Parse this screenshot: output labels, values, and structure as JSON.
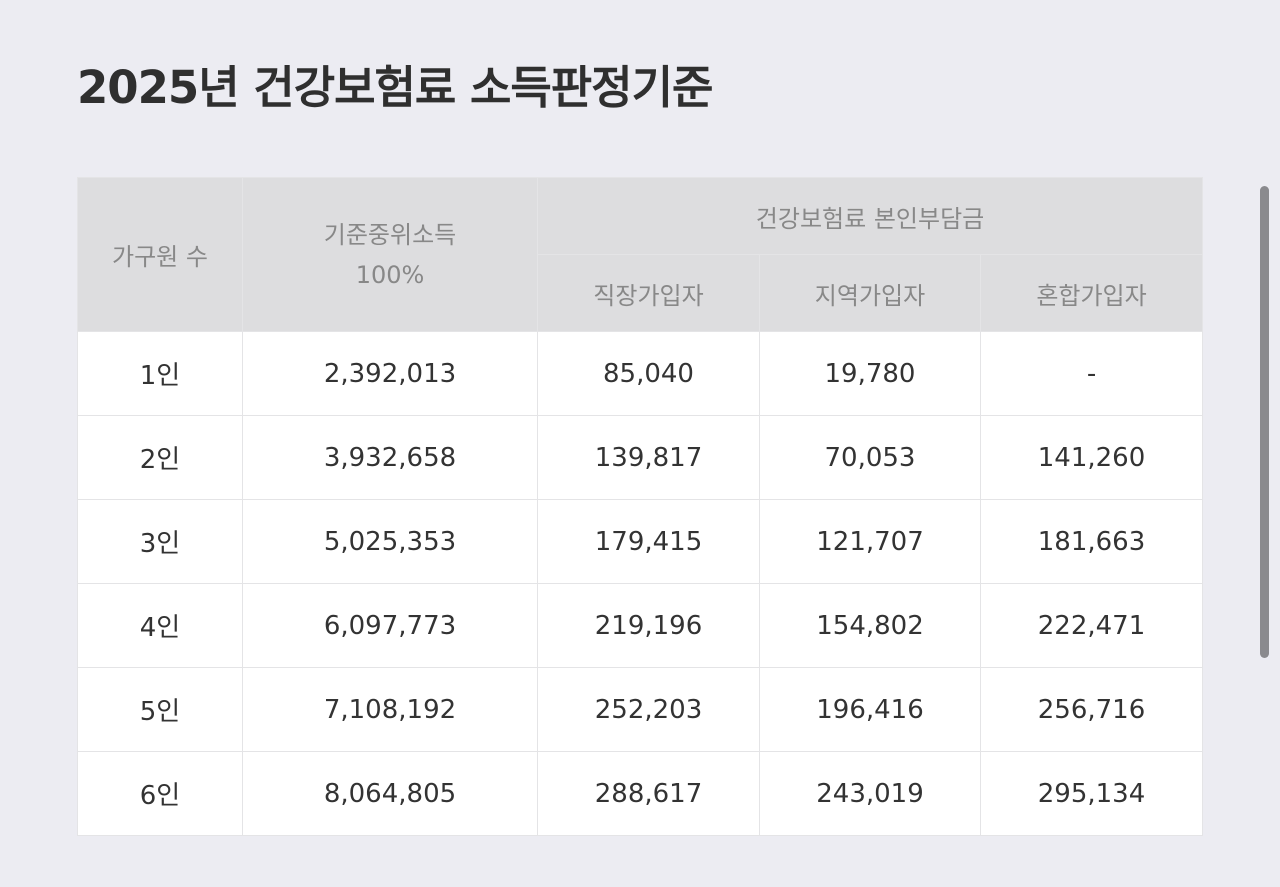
{
  "page": {
    "title": "2025년 건강보험료 소득판정기준"
  },
  "table": {
    "header": {
      "household": "가구원 수",
      "median_income_line1": "기준중위소득",
      "median_income_line2": "100%",
      "premium_group": "건강보험료 본인부담금",
      "employee": "직장가입자",
      "regional": "지역가입자",
      "mixed": "혼합가입자"
    },
    "rows": [
      {
        "household": "1인",
        "median_income": "2,392,013",
        "employee": "85,040",
        "regional": "19,780",
        "mixed": "-"
      },
      {
        "household": "2인",
        "median_income": "3,932,658",
        "employee": "139,817",
        "regional": "70,053",
        "mixed": "141,260"
      },
      {
        "household": "3인",
        "median_income": "5,025,353",
        "employee": "179,415",
        "regional": "121,707",
        "mixed": "181,663"
      },
      {
        "household": "4인",
        "median_income": "6,097,773",
        "employee": "219,196",
        "regional": "154,802",
        "mixed": "222,471"
      },
      {
        "household": "5인",
        "median_income": "7,108,192",
        "employee": "252,203",
        "regional": "196,416",
        "mixed": "256,716"
      },
      {
        "household": "6인",
        "median_income": "8,064,805",
        "employee": "288,617",
        "regional": "243,019",
        "mixed": "295,134"
      }
    ]
  },
  "colors": {
    "background": "#ececf2",
    "header_background": "#dddddf",
    "header_text": "#888888",
    "cell_background": "#ffffff",
    "body_text": "#333333",
    "scrollbar": "#8a8a8e"
  }
}
